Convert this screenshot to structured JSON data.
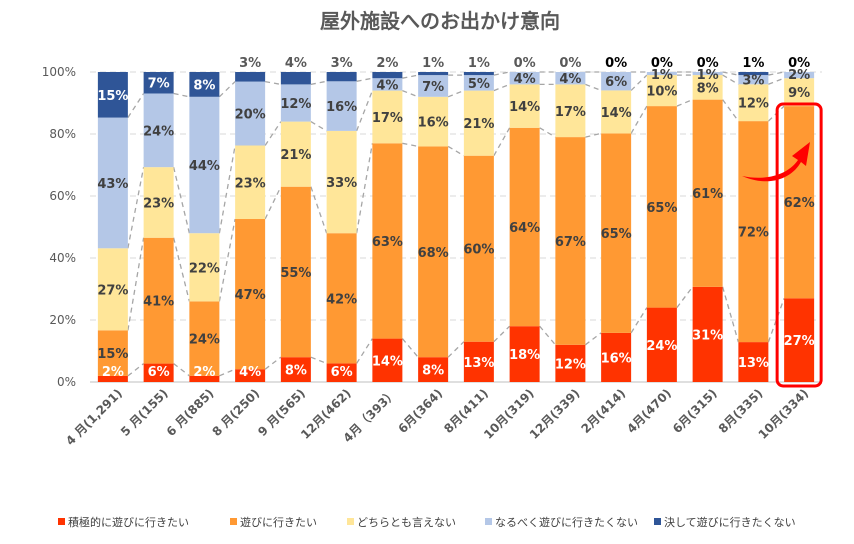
{
  "chart_data": {
    "type": "bar",
    "stacked": "percent",
    "title": "屋外施設へのお出かけ意向",
    "ylim": [
      0,
      100
    ],
    "yticks": [
      "0%",
      "20%",
      "40%",
      "60%",
      "80%",
      "100%"
    ],
    "grid": true,
    "legend_position": "bottom",
    "categories": [
      "4 月(1,291)",
      "5 月(155)",
      "6 月(885)",
      "8 月(250)",
      "9 月(565)",
      "12月(462)",
      "4月（393）",
      "6月(364)",
      "8月(411)",
      "10月(319)",
      "12月(339)",
      "2月(414)",
      "4月(470)",
      "6月(315)",
      "8月(335)",
      "10月(334)"
    ],
    "series": [
      {
        "name": "積極的に遊びに行きたい",
        "color": "#FF3300",
        "values": [
          2,
          6,
          2,
          4,
          8,
          6,
          14,
          8,
          13,
          18,
          12,
          16,
          24,
          31,
          13,
          27
        ]
      },
      {
        "name": "遊びに行きたい",
        "color": "#FF9933",
        "values": [
          15,
          41,
          24,
          47,
          55,
          42,
          63,
          68,
          60,
          64,
          67,
          65,
          65,
          61,
          72,
          62
        ]
      },
      {
        "name": "どちらとも言えない",
        "color": "#FFE699",
        "values": [
          27,
          23,
          22,
          23,
          21,
          33,
          17,
          16,
          21,
          14,
          17,
          14,
          10,
          8,
          12,
          9
        ]
      },
      {
        "name": "なるべく遊びに行きたくない",
        "color": "#B4C7E7",
        "values": [
          43,
          24,
          44,
          20,
          12,
          16,
          4,
          7,
          5,
          4,
          4,
          6,
          1,
          1,
          3,
          2
        ]
      },
      {
        "name": "決して遊びに行きたくない",
        "color": "#2F5597",
        "values": [
          15,
          7,
          8,
          3,
          4,
          3,
          2,
          1,
          1,
          0,
          0,
          0,
          0,
          0,
          1,
          0
        ]
      }
    ],
    "highlight_category": "10月(334)",
    "highlight_color": "#FF0000"
  }
}
